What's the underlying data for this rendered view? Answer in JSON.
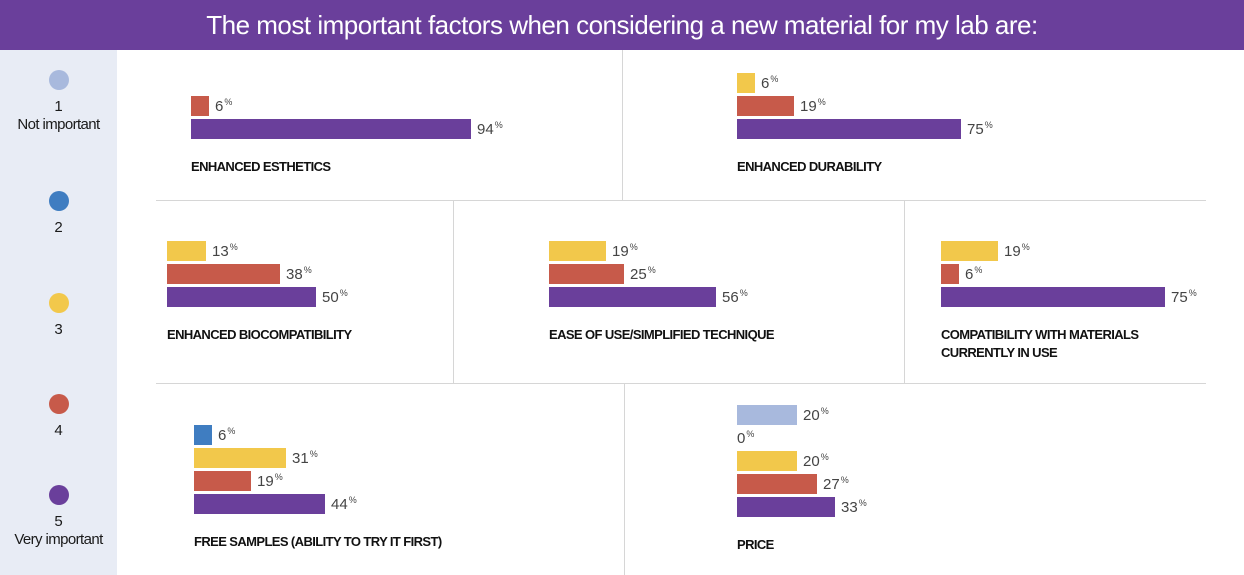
{
  "title": "The most important factors when considering a new material for my lab are:",
  "colors": {
    "1": "#a8b9dd",
    "2": "#3f7dc1",
    "3": "#f2c84b",
    "4": "#c75a4a",
    "5": "#6a3f9b"
  },
  "legend": [
    {
      "level": "1",
      "num": "1",
      "desc": "Not important"
    },
    {
      "level": "2",
      "num": "2",
      "desc": ""
    },
    {
      "level": "3",
      "num": "3",
      "desc": ""
    },
    {
      "level": "4",
      "num": "4",
      "desc": ""
    },
    {
      "level": "5",
      "num": "5",
      "desc": "Very important"
    }
  ],
  "chart_data": [
    {
      "type": "bar",
      "title": "ENHANCED ESTHETICS",
      "unit": "%",
      "series": [
        {
          "name": "4",
          "value": 6
        },
        {
          "name": "5",
          "value": 94
        }
      ]
    },
    {
      "type": "bar",
      "title": "ENHANCED DURABILITY",
      "unit": "%",
      "series": [
        {
          "name": "3",
          "value": 6
        },
        {
          "name": "4",
          "value": 19
        },
        {
          "name": "5",
          "value": 75
        }
      ]
    },
    {
      "type": "bar",
      "title": "ENHANCED BIOCOMPATIBILITY",
      "unit": "%",
      "series": [
        {
          "name": "3",
          "value": 13
        },
        {
          "name": "4",
          "value": 38
        },
        {
          "name": "5",
          "value": 50
        }
      ]
    },
    {
      "type": "bar",
      "title": "EASE OF USE/SIMPLIFIED TECHNIQUE",
      "unit": "%",
      "series": [
        {
          "name": "3",
          "value": 19
        },
        {
          "name": "4",
          "value": 25
        },
        {
          "name": "5",
          "value": 56
        }
      ]
    },
    {
      "type": "bar",
      "title": [
        "COMPATIBILITY WITH MATERIALS",
        "CURRENTLY IN USE"
      ],
      "unit": "%",
      "series": [
        {
          "name": "3",
          "value": 19
        },
        {
          "name": "4",
          "value": 6
        },
        {
          "name": "5",
          "value": 75
        }
      ]
    },
    {
      "type": "bar",
      "title": "FREE SAMPLES (ABILITY TO TRY IT FIRST)",
      "unit": "%",
      "series": [
        {
          "name": "2",
          "value": 6
        },
        {
          "name": "3",
          "value": 31
        },
        {
          "name": "4",
          "value": 19
        },
        {
          "name": "5",
          "value": 44
        }
      ]
    },
    {
      "type": "bar",
      "title": "PRICE",
      "unit": "%",
      "series": [
        {
          "name": "1",
          "value": 20
        },
        {
          "name": "2",
          "value": 0
        },
        {
          "name": "3",
          "value": 20
        },
        {
          "name": "4",
          "value": 27
        },
        {
          "name": "5",
          "value": 33
        }
      ]
    }
  ]
}
